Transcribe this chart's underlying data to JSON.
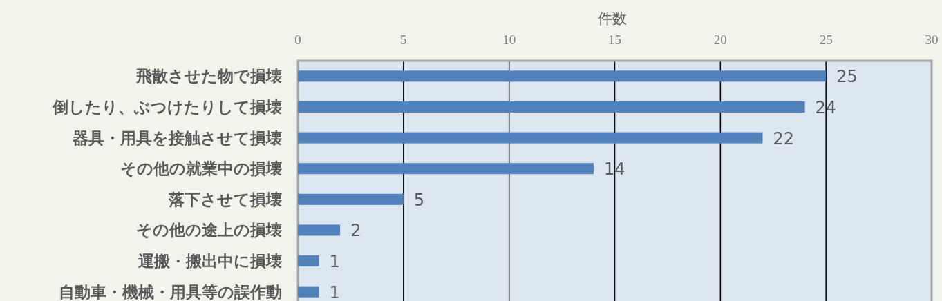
{
  "chart_data": {
    "type": "bar",
    "orientation": "horizontal",
    "xlabel": "件数",
    "categories": [
      "飛散させた物で損壊",
      "倒したり、ぶつけたりして損壊",
      "器具・用具を接触させて損壊",
      "その他の就業中の損壊",
      "落下させて損壊",
      "その他の途上の損壊",
      "運搬・搬出中に損壊",
      "自動車・機械・用具等の誤作動"
    ],
    "values": [
      25,
      24,
      22,
      14,
      5,
      2,
      1,
      1
    ],
    "color": "#4f81bd",
    "xlim": [
      0,
      30
    ],
    "xticks": [
      0,
      5,
      10,
      15,
      20,
      25,
      30
    ],
    "grid": "x",
    "data_labels": true
  }
}
